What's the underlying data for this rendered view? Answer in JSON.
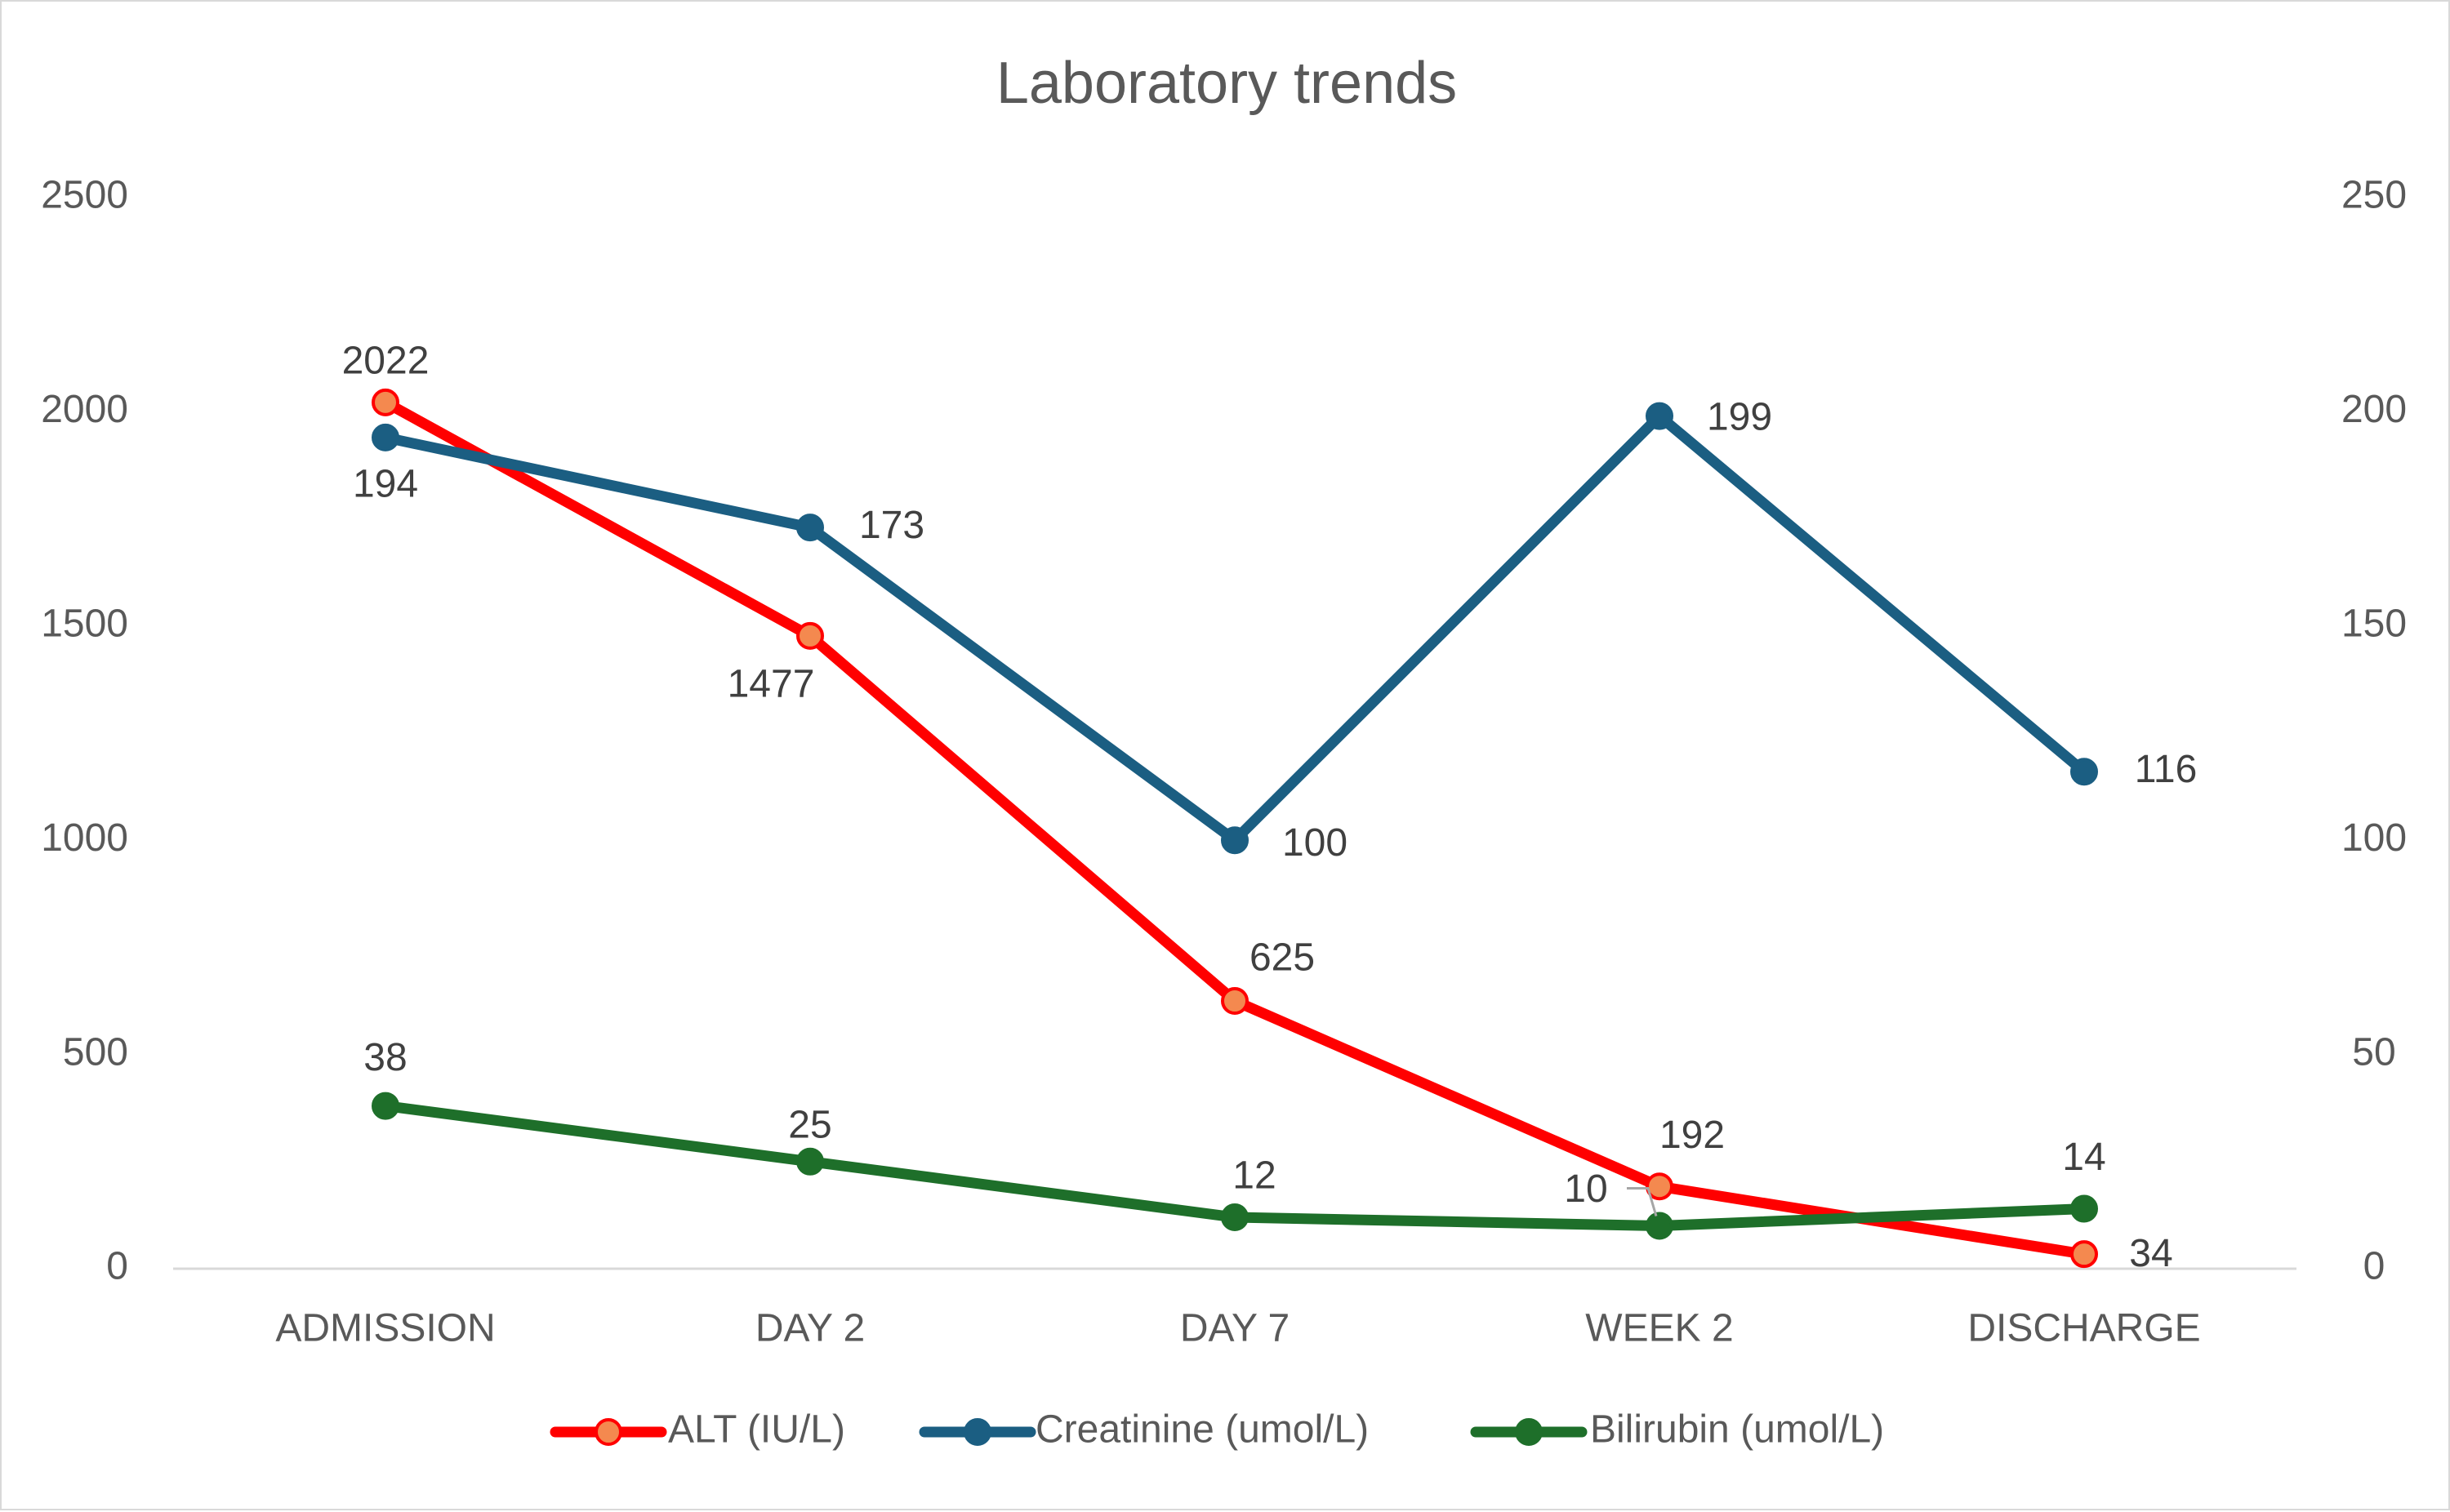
{
  "chart_data": {
    "type": "line",
    "title": "Laboratory trends",
    "categories": [
      "ADMISSION",
      "DAY 2",
      "DAY 7",
      "WEEK 2",
      "DISCHARGE"
    ],
    "y_left": {
      "ticks": [
        "0",
        "500",
        "1000",
        "1500",
        "2000",
        "2500"
      ],
      "ylim": [
        0,
        2500
      ]
    },
    "y_right": {
      "ticks": [
        "0",
        "50",
        "100",
        "150",
        "200",
        "250"
      ],
      "ylim": [
        0,
        250
      ]
    },
    "grid": false,
    "legend_position": "bottom",
    "series": [
      {
        "name": "ALT (IU/L)",
        "axis": "left",
        "color": "#ff0000",
        "marker_fill": "#f4894f",
        "values": [
          2022,
          1477,
          625,
          192,
          34
        ]
      },
      {
        "name": "Creatinine (umol/L)",
        "axis": "right",
        "color": "#1b5e82",
        "marker_fill": "#1b5e82",
        "values": [
          194,
          173,
          100,
          199,
          116
        ]
      },
      {
        "name": "Bilirubin (umol/L)",
        "axis": "right",
        "color": "#1e6f2a",
        "marker_fill": "#1e6f2a",
        "values": [
          38,
          25,
          12,
          10,
          14
        ]
      }
    ]
  }
}
